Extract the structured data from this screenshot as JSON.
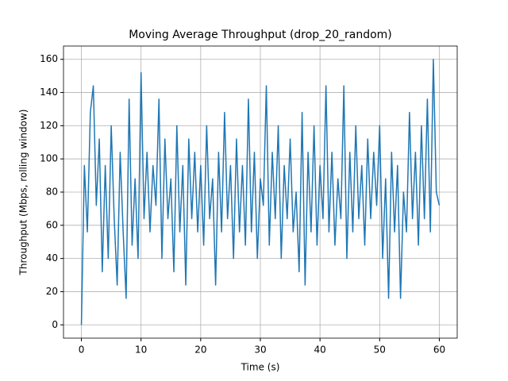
{
  "chart_data": {
    "type": "line",
    "title": "Moving Average Throughput (drop_20_random)",
    "xlabel": "Time (s)",
    "ylabel": "Throughput (Mbps, rolling window)",
    "x": [
      0,
      0.5,
      1,
      1.5,
      2,
      2.5,
      3,
      3.5,
      4,
      4.5,
      5,
      5.5,
      6,
      6.5,
      7,
      7.5,
      8,
      8.5,
      9,
      9.5,
      10,
      10.5,
      11,
      11.5,
      12,
      12.5,
      13,
      13.5,
      14,
      14.5,
      15,
      15.5,
      16,
      16.5,
      17,
      17.5,
      18,
      18.5,
      19,
      19.5,
      20,
      20.5,
      21,
      21.5,
      22,
      22.5,
      23,
      23.5,
      24,
      24.5,
      25,
      25.5,
      26,
      26.5,
      27,
      27.5,
      28,
      28.5,
      29,
      29.5,
      30,
      30.5,
      31,
      31.5,
      32,
      32.5,
      33,
      33.5,
      34,
      34.5,
      35,
      35.5,
      36,
      36.5,
      37,
      37.5,
      38,
      38.5,
      39,
      39.5,
      40,
      40.5,
      41,
      41.5,
      42,
      42.5,
      43,
      43.5,
      44,
      44.5,
      45,
      45.5,
      46,
      46.5,
      47,
      47.5,
      48,
      48.5,
      49,
      49.5,
      50,
      50.5,
      51,
      51.5,
      52,
      52.5,
      53,
      53.5,
      54,
      54.5,
      55,
      55.5,
      56,
      56.5,
      57,
      57.5,
      58,
      58.5,
      59,
      59.5,
      60
    ],
    "series": [
      {
        "name": "throughput",
        "color": "#1f77b4",
        "values": [
          0,
          96,
          56,
          128,
          144,
          72,
          112,
          32,
          96,
          40,
          120,
          64,
          24,
          104,
          56,
          16,
          136,
          48,
          88,
          40,
          152,
          64,
          104,
          56,
          96,
          72,
          136,
          40,
          112,
          64,
          88,
          32,
          120,
          56,
          96,
          24,
          112,
          64,
          104,
          56,
          96,
          48,
          120,
          64,
          88,
          24,
          104,
          56,
          128,
          64,
          96,
          40,
          112,
          56,
          96,
          48,
          136,
          56,
          104,
          40,
          88,
          72,
          144,
          48,
          104,
          64,
          120,
          40,
          96,
          64,
          112,
          56,
          80,
          32,
          128,
          24,
          104,
          56,
          120,
          48,
          96,
          64,
          144,
          56,
          104,
          48,
          88,
          64,
          144,
          40,
          104,
          56,
          120,
          64,
          96,
          48,
          112,
          64,
          104,
          72,
          120,
          40,
          88,
          16,
          104,
          56,
          96,
          16,
          80,
          56,
          128,
          64,
          104,
          48,
          120,
          64,
          136,
          56,
          160,
          80,
          72
        ]
      }
    ],
    "xlim": [
      -3,
      63
    ],
    "ylim": [
      -8,
      168
    ],
    "xticks": [
      0,
      10,
      20,
      30,
      40,
      50,
      60
    ],
    "yticks": [
      0,
      20,
      40,
      60,
      80,
      100,
      120,
      140,
      160
    ],
    "grid": true
  }
}
